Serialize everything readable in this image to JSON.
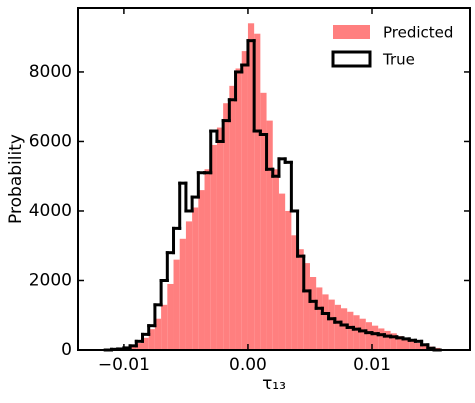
{
  "chart_data": {
    "type": "histogram",
    "xlabel": "τ₁₃",
    "ylabel": "Probability",
    "bins": [
      -0.0115,
      -0.011,
      -0.0105,
      -0.01,
      -0.0095,
      -0.009,
      -0.0085,
      -0.008,
      -0.0075,
      -0.007,
      -0.0065,
      -0.006,
      -0.0055,
      -0.005,
      -0.0045,
      -0.004,
      -0.0035,
      -0.003,
      -0.0025,
      -0.002,
      -0.0015,
      -0.001,
      -0.0005,
      0,
      0.0005,
      0.001,
      0.0015,
      0.002,
      0.0025,
      0.003,
      0.0035,
      0.004,
      0.0045,
      0.005,
      0.0055,
      0.006,
      0.0065,
      0.007,
      0.0075,
      0.008,
      0.0085,
      0.009,
      0.0095,
      0.01,
      0.0105,
      0.011,
      0.0115,
      0.012,
      0.0125,
      0.013,
      0.0135,
      0.014,
      0.0145,
      0.015,
      0.0155
    ],
    "series": [
      {
        "name": "Predicted",
        "color": "#ff7f7f",
        "histtype": "bar",
        "values": [
          0,
          0,
          20,
          50,
          100,
          200,
          350,
          600,
          900,
          1300,
          1900,
          2600,
          3200,
          3700,
          4100,
          4600,
          5200,
          5900,
          6400,
          7100,
          7600,
          8100,
          8600,
          9400,
          9100,
          7400,
          6600,
          5200,
          4500,
          4000,
          3300,
          2900,
          2500,
          2100,
          1800,
          1600,
          1450,
          1300,
          1200,
          1100,
          1000,
          900,
          800,
          700,
          620,
          550,
          480,
          400,
          330,
          260,
          200,
          150,
          100,
          60
        ]
      },
      {
        "name": "True",
        "color": "#000000",
        "histtype": "step",
        "values": [
          0,
          20,
          30,
          60,
          120,
          250,
          450,
          700,
          1300,
          2000,
          2800,
          3500,
          4800,
          4000,
          4400,
          5100,
          5100,
          6300,
          6000,
          6600,
          7200,
          8000,
          8200,
          8900,
          6300,
          6200,
          5200,
          5000,
          5500,
          5400,
          4000,
          2700,
          1700,
          1400,
          1200,
          1050,
          900,
          800,
          720,
          650,
          600,
          550,
          500,
          470,
          440,
          400,
          380,
          350,
          320,
          280,
          250,
          150,
          50,
          0
        ]
      }
    ],
    "xlim": [
      -0.0137,
      0.0179
    ],
    "xticks": [
      {
        "value": -0.01,
        "label": "−0.01"
      },
      {
        "value": 0,
        "label": "0.00"
      },
      {
        "value": 0.01,
        "label": "0.01"
      }
    ],
    "ylim": [
      0,
      9840
    ],
    "yticks": [
      0,
      2000,
      4000,
      6000,
      8000
    ],
    "legend": "upper right"
  }
}
